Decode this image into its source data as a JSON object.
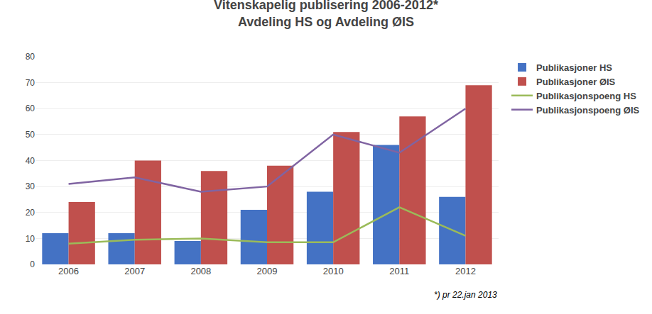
{
  "chart_data": {
    "type": "bar",
    "title": "Vitenskapelig publisering 2006-2012*",
    "subtitle": "Avdeling HS og Avdeling ØIS",
    "categories": [
      "2006",
      "2007",
      "2008",
      "2009",
      "2010",
      "2011",
      "2012"
    ],
    "series": [
      {
        "name": "Publikasjoner HS",
        "type": "bar",
        "color": "#4472C4",
        "values": [
          12,
          12,
          9,
          21,
          28,
          46,
          26
        ]
      },
      {
        "name": "Publikasjoner ØIS",
        "type": "bar",
        "color": "#C0504D",
        "values": [
          24,
          40,
          36,
          38,
          51,
          57,
          69
        ]
      },
      {
        "name": "Publikasjonspoeng HS",
        "type": "line",
        "color": "#9BBB59",
        "values": [
          8,
          9.5,
          10,
          8.5,
          8.5,
          22,
          11
        ]
      },
      {
        "name": "Publikasjonspoeng ØIS",
        "type": "line",
        "color": "#8064A2",
        "values": [
          31,
          33.5,
          28,
          30,
          50,
          43,
          60
        ]
      }
    ],
    "ylim": [
      0,
      80
    ],
    "yticks": [
      0,
      10,
      20,
      30,
      40,
      50,
      60,
      70,
      80
    ],
    "grid": true,
    "legend": "right",
    "annotations": [
      "*) pr 22.jan 2013"
    ]
  }
}
